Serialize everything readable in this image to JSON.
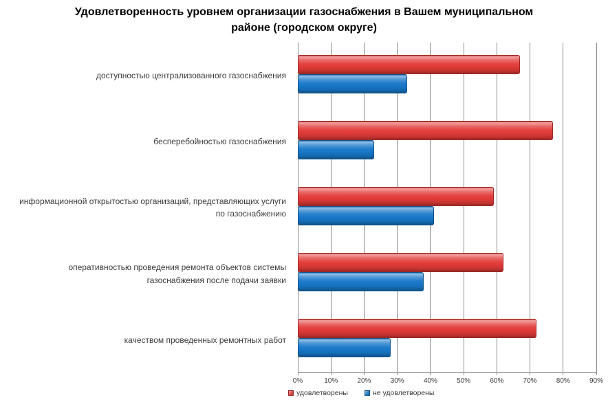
{
  "title": "Удовлетворенность уровнем организации газоснабжения в Вашем муниципальном\nрайоне (городском округе)",
  "chart_data": {
    "type": "bar",
    "orientation": "horizontal",
    "title": "Удовлетворенность уровнем организации газоснабжения в Вашем муниципальном районе (городском округе)",
    "categories": [
      "доступностью централизованного газоснабжения",
      "бесперебойностью газоснабжения",
      "информационной открытостью организаций, представляющих услуги\nпо газоснабжению",
      "оперативностью проведения ремонта объектов системы\nгазоснабжения после подачи заявки",
      "качеством проведенных ремонтных работ"
    ],
    "series": [
      {
        "name": "удовлетворены",
        "color": "#e13b38",
        "values": [
          67,
          77,
          59,
          62,
          72
        ]
      },
      {
        "name": "не удовлетворены",
        "color": "#1777c8",
        "values": [
          33,
          23,
          41,
          38,
          28
        ]
      }
    ],
    "x_ticks": [
      "0%",
      "10%",
      "20%",
      "30%",
      "40%",
      "50%",
      "60%",
      "70%",
      "80%",
      "90%"
    ],
    "xlim": [
      0,
      90
    ],
    "grid": "vertical-major",
    "grid_color": "#8a8a8a",
    "text_color": "#3a3a3a",
    "legend_position": "bottom"
  }
}
